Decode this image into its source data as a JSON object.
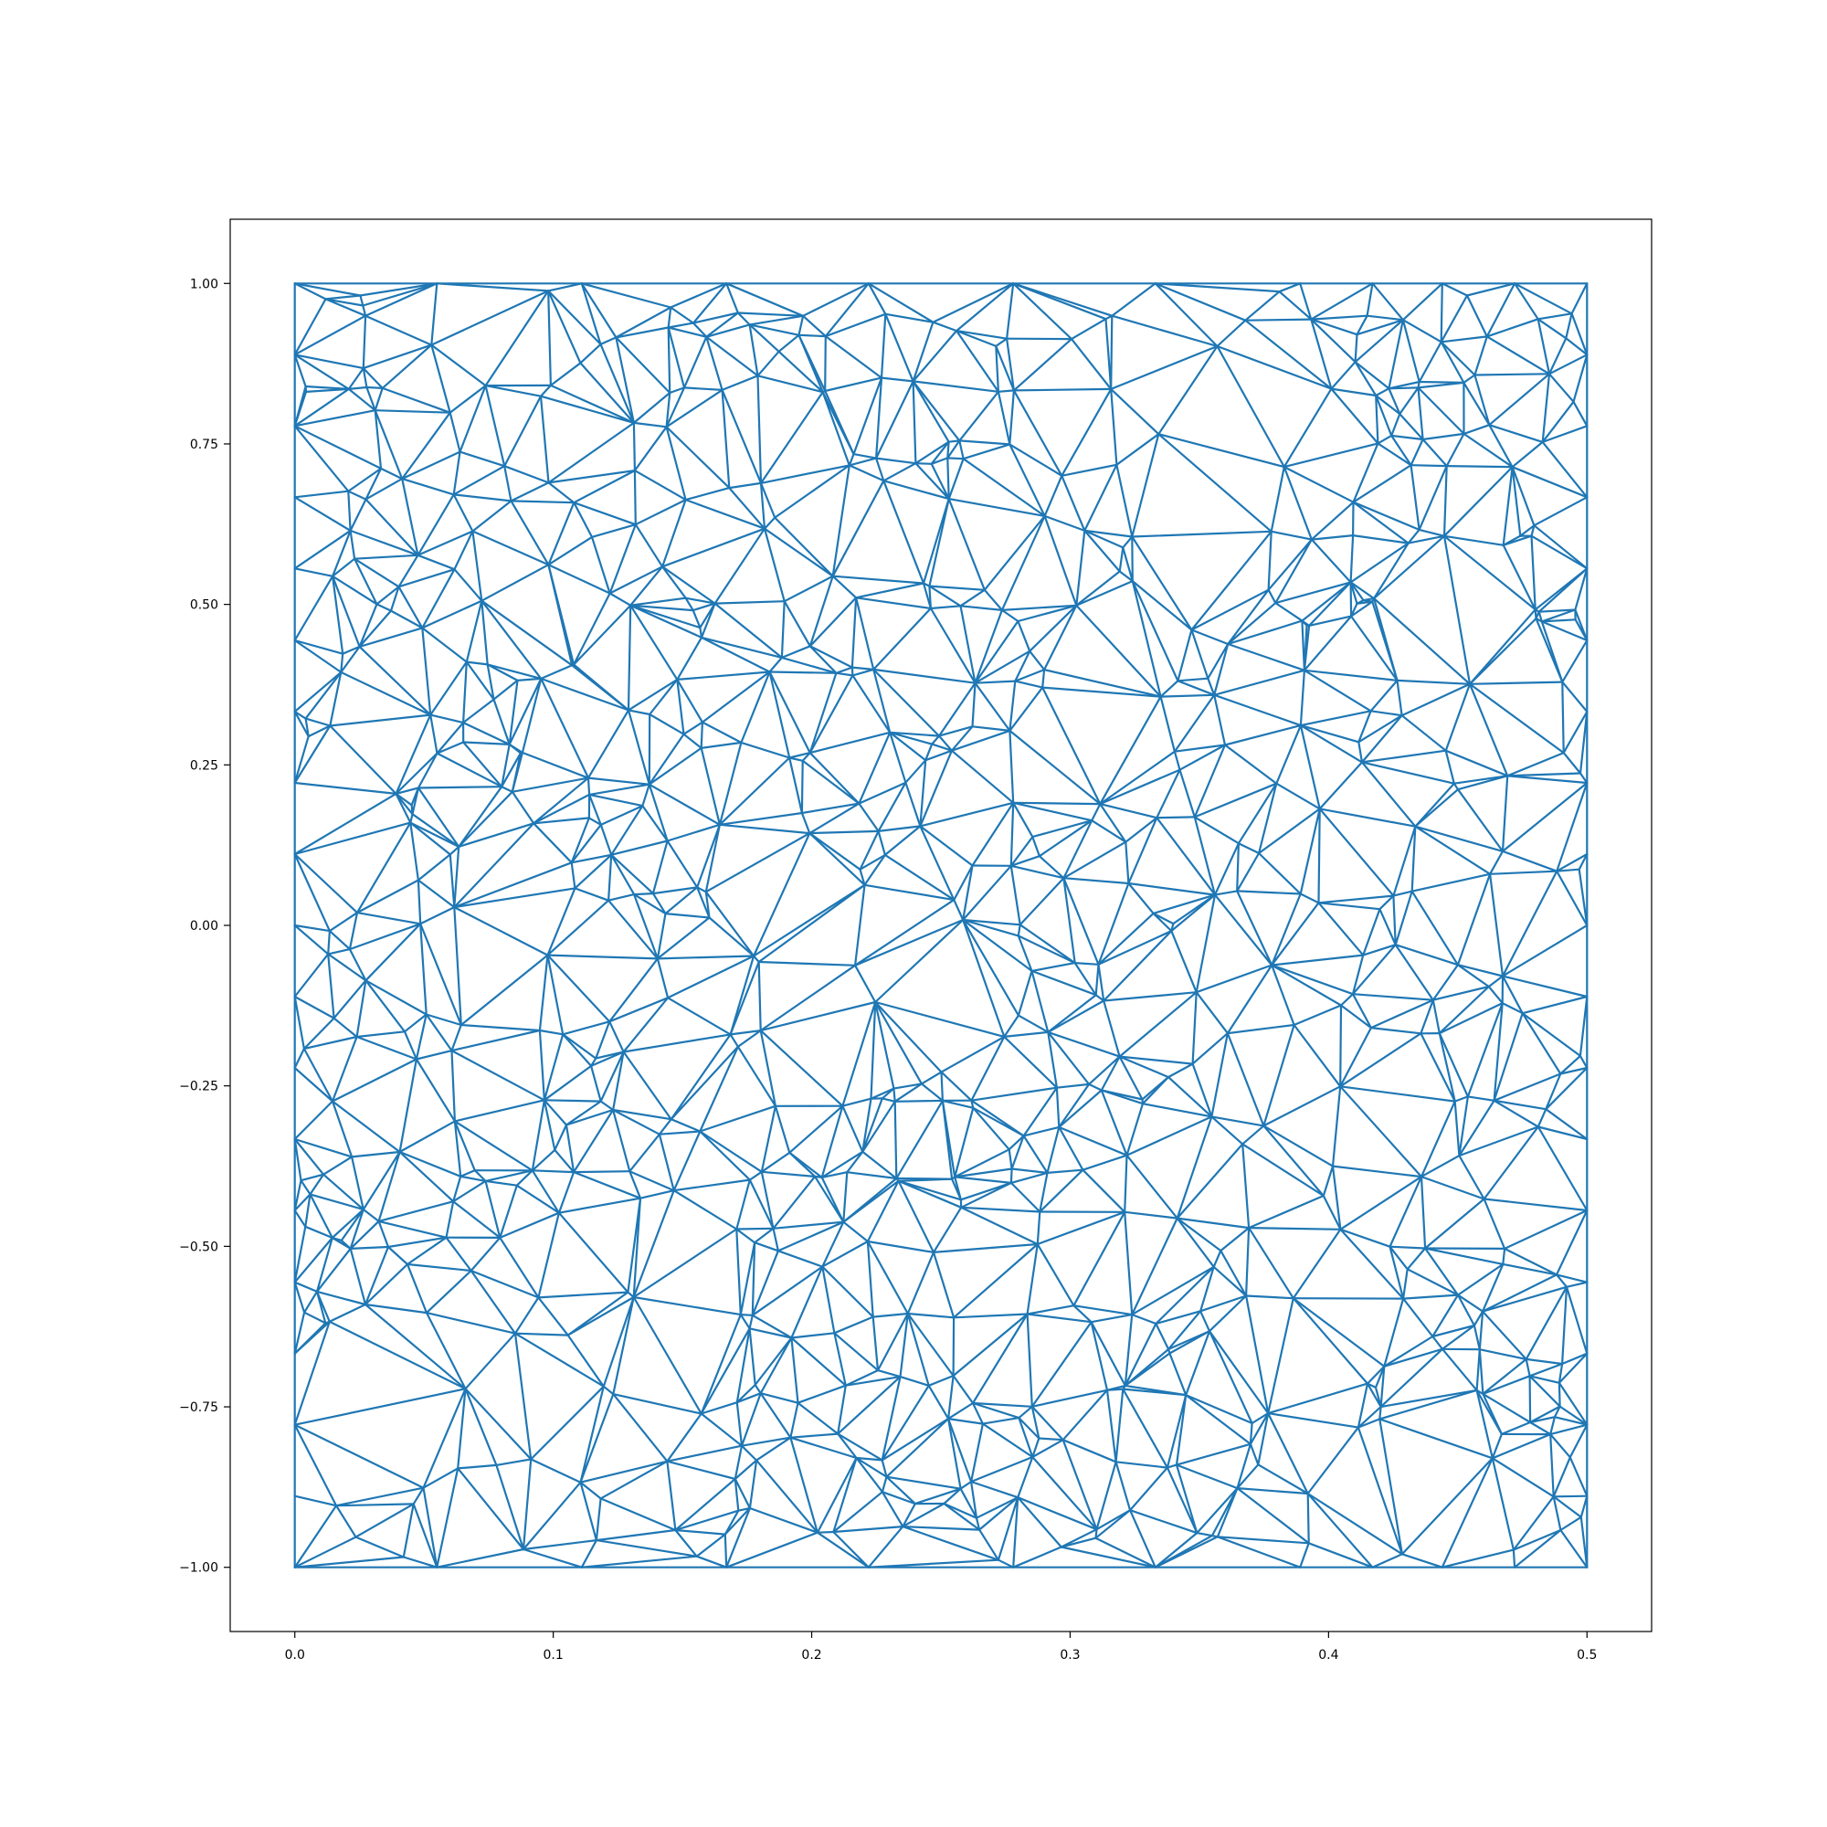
{
  "chart_data": {
    "type": "triangulation",
    "title": "",
    "xlabel": "",
    "ylabel": "",
    "xlim": [
      -0.025,
      0.525
    ],
    "ylim": [
      -1.1,
      1.1
    ],
    "grid": false,
    "legend": "none",
    "color": "#1f77b4",
    "x_ticks": [
      {
        "value": 0.0,
        "label": "0.0"
      },
      {
        "value": 0.1,
        "label": "0.1"
      },
      {
        "value": 0.2,
        "label": "0.2"
      },
      {
        "value": 0.3,
        "label": "0.3"
      },
      {
        "value": 0.4,
        "label": "0.4"
      },
      {
        "value": 0.5,
        "label": "0.5"
      }
    ],
    "y_ticks": [
      {
        "value": -1.0,
        "label": "−1.00"
      },
      {
        "value": -0.75,
        "label": "−0.75"
      },
      {
        "value": -0.5,
        "label": "−0.50"
      },
      {
        "value": -0.25,
        "label": "−0.25"
      },
      {
        "value": 0.0,
        "label": "0.00"
      },
      {
        "value": 0.25,
        "label": "0.25"
      },
      {
        "value": 0.5,
        "label": "0.50"
      },
      {
        "value": 0.75,
        "label": "0.75"
      },
      {
        "value": 1.0,
        "label": "1.00"
      }
    ],
    "domain_x": [
      0.0,
      0.5
    ],
    "domain_y": [
      -1.0,
      1.0
    ],
    "approx_vertex_count": 700
  }
}
